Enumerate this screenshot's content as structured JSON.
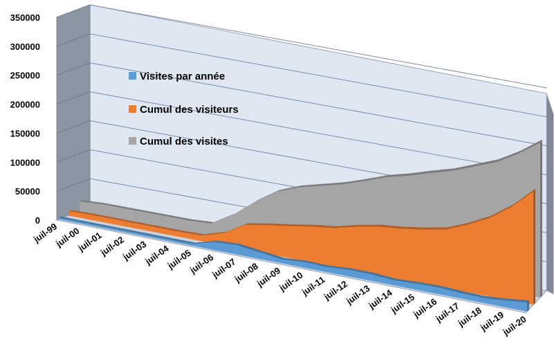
{
  "chart_data": {
    "type": "area",
    "title": "",
    "xlabel": "",
    "ylabel": "",
    "ylim": [
      0,
      350000
    ],
    "yticks": [
      "0",
      "50000",
      "100000",
      "150000",
      "200000",
      "250000",
      "300000",
      "350000"
    ],
    "categories": [
      "juil-99",
      "juil-00",
      "juil-01",
      "juil-02",
      "juil-03",
      "juil-04",
      "juil-05",
      "juil-06",
      "juil-07",
      "juil-08",
      "juil-09",
      "juil-10",
      "juil-11",
      "juil-12",
      "juil-13",
      "juil-14",
      "juil-15",
      "juil-16",
      "juil-17",
      "juil-18",
      "juil-19",
      "juil-20"
    ],
    "legend_position": "left",
    "three_d": true,
    "series": [
      {
        "name": "Visites par année",
        "color": "#5b9bd5",
        "values": [
          3000,
          3000,
          3000,
          3000,
          3000,
          3000,
          3000,
          15000,
          17000,
          12000,
          7000,
          10000,
          9000,
          12000,
          12000,
          9000,
          11000,
          12000,
          10000,
          9000,
          12000,
          17000
        ]
      },
      {
        "name": "Cumul des visiteurs",
        "color": "#ed7d31",
        "values": [
          8000,
          9000,
          9000,
          9000,
          9000,
          9000,
          10000,
          22000,
          45000,
          52000,
          58000,
          65000,
          70000,
          80000,
          88000,
          92000,
          98000,
          106000,
          122000,
          142000,
          170000,
          206000
        ]
      },
      {
        "name": "Cumul des visites",
        "color": "#a5a5a5",
        "values": [
          18000,
          20000,
          20000,
          20000,
          20000,
          20000,
          22000,
          45000,
          75000,
          100000,
          115000,
          125000,
          135000,
          148000,
          162000,
          172000,
          184000,
          195000,
          210000,
          225000,
          247000,
          274000
        ]
      }
    ]
  }
}
